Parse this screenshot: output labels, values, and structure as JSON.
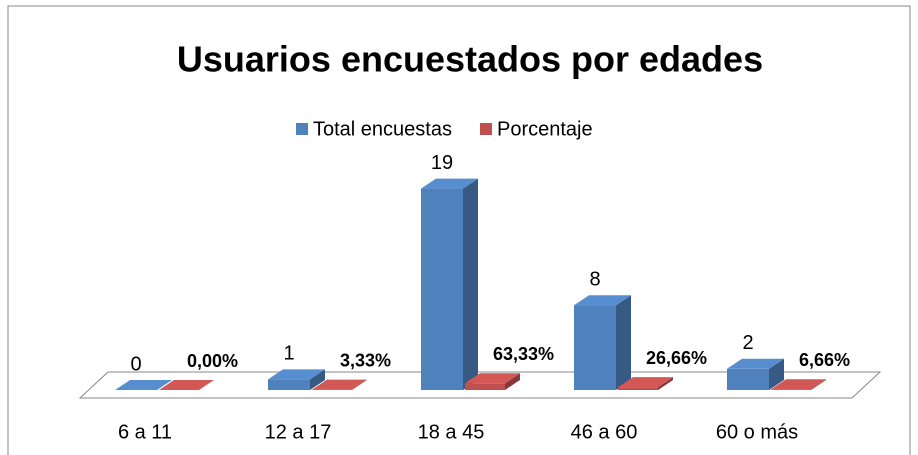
{
  "chart_data": {
    "type": "bar3d",
    "title": "Usuarios encuestados por edades",
    "categories": [
      "6 a 11",
      "12 a 17",
      "18 a 45",
      "46 a 60",
      "60 o más"
    ],
    "series": [
      {
        "name": "Total encuestas",
        "color": "#4f81bd",
        "values": [
          0,
          1,
          19,
          8,
          2
        ]
      },
      {
        "name": "Porcentaje",
        "color": "#c0504d",
        "values": [
          0,
          0.0333,
          0.6333,
          0.2666,
          0.0666
        ],
        "value_labels": [
          "0,00%",
          "3,33%",
          "63,33%",
          "26,66%",
          "6,66%"
        ]
      }
    ],
    "ylim": [
      0,
      20
    ],
    "legend": "top"
  }
}
